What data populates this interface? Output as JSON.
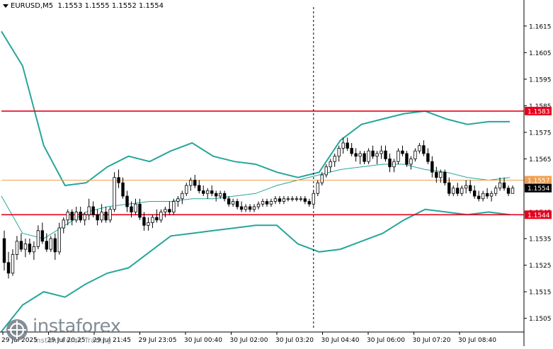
{
  "symbol_bar": {
    "symbol": "EURUSD,M5",
    "ohlc": "1.1553 1.1555 1.1552 1.1554"
  },
  "watermark": {
    "brand": "instaforex",
    "tagline": "Instant Forex Trading"
  },
  "colors": {
    "background": "#ffffff",
    "candles": "#000000",
    "bollinger": "#26a69a",
    "red_line": "#e8001c",
    "orange_line": "#f0a050",
    "price_box": "#000000"
  },
  "chart_data": {
    "type": "candlestick",
    "symbol": "EURUSD",
    "timeframe": "M5",
    "ylim": [
      1.15,
      1.162
    ],
    "y_ticks": [
      "1.1615",
      "1.1605",
      "1.1595",
      "1.1585",
      "1.1575",
      "1.1565",
      "1.1555",
      "1.1545",
      "1.1535",
      "1.1525",
      "1.1515",
      "1.1505"
    ],
    "x_ticks": [
      "29 Jul 2025",
      "29 Jul 20:25",
      "29 Jul 21:45",
      "29 Jul 23:05",
      "30 Jul 00:40",
      "30 Jul 02:00",
      "30 Jul 03:20",
      "30 Jul 04:40",
      "30 Jul 06:00",
      "30 Jul 07:20",
      "30 Jul 08:40"
    ],
    "horizontal_levels": [
      {
        "price": 1.1583,
        "label": "1.1583",
        "color": "#e8001c"
      },
      {
        "price": 1.1557,
        "label": "1.1557",
        "color": "#f0a050"
      },
      {
        "price": 1.1544,
        "label": "1.1544",
        "color": "#e8001c"
      }
    ],
    "current_price": {
      "price": 1.1554,
      "label": "1.1554"
    },
    "vertical_marker_index": 73,
    "candles": [
      [
        1.1535,
        1.1538,
        1.1523,
        1.1526
      ],
      [
        1.1526,
        1.153,
        1.152,
        1.1522
      ],
      [
        1.1522,
        1.1531,
        1.1521,
        1.1529
      ],
      [
        1.1529,
        1.1536,
        1.1527,
        1.1534
      ],
      [
        1.1534,
        1.1537,
        1.153,
        1.1531
      ],
      [
        1.1531,
        1.1535,
        1.1528,
        1.1533
      ],
      [
        1.1533,
        1.1535,
        1.1529,
        1.153
      ],
      [
        1.153,
        1.1534,
        1.1527,
        1.1532
      ],
      [
        1.1532,
        1.154,
        1.1531,
        1.1538
      ],
      [
        1.1538,
        1.1541,
        1.1533,
        1.1534
      ],
      [
        1.1534,
        1.1537,
        1.153,
        1.1531
      ],
      [
        1.1531,
        1.1536,
        1.153,
        1.1535
      ],
      [
        1.1535,
        1.1537,
        1.1527,
        1.153
      ],
      [
        1.153,
        1.1541,
        1.1529,
        1.1539
      ],
      [
        1.1539,
        1.1543,
        1.1537,
        1.1542
      ],
      [
        1.1542,
        1.1546,
        1.154,
        1.1545
      ],
      [
        1.1545,
        1.1546,
        1.154,
        1.1542
      ],
      [
        1.1542,
        1.1547,
        1.1541,
        1.1545
      ],
      [
        1.1545,
        1.1547,
        1.1541,
        1.1542
      ],
      [
        1.1542,
        1.1545,
        1.154,
        1.1544
      ],
      [
        1.1544,
        1.155,
        1.1542,
        1.1547
      ],
      [
        1.1547,
        1.1549,
        1.1543,
        1.1544
      ],
      [
        1.1544,
        1.1546,
        1.154,
        1.1542
      ],
      [
        1.1542,
        1.1548,
        1.1541,
        1.1545
      ],
      [
        1.1545,
        1.1547,
        1.1541,
        1.1542
      ],
      [
        1.1542,
        1.1547,
        1.1541,
        1.1546
      ],
      [
        1.1546,
        1.156,
        1.1545,
        1.1558
      ],
      [
        1.1558,
        1.1561,
        1.1554,
        1.1556
      ],
      [
        1.1556,
        1.1558,
        1.155,
        1.1551
      ],
      [
        1.1551,
        1.1553,
        1.1545,
        1.1547
      ],
      [
        1.1547,
        1.1549,
        1.1543,
        1.1545
      ],
      [
        1.1545,
        1.155,
        1.1544,
        1.1548
      ],
      [
        1.1548,
        1.155,
        1.1542,
        1.1543
      ],
      [
        1.1543,
        1.1545,
        1.1538,
        1.154
      ],
      [
        1.154,
        1.1543,
        1.1538,
        1.1541
      ],
      [
        1.1541,
        1.1544,
        1.1539,
        1.1543
      ],
      [
        1.1543,
        1.1546,
        1.1541,
        1.1542
      ],
      [
        1.1542,
        1.1546,
        1.1541,
        1.1545
      ],
      [
        1.1545,
        1.1547,
        1.1543,
        1.1546
      ],
      [
        1.1546,
        1.1549,
        1.1544,
        1.1545
      ],
      [
        1.1545,
        1.155,
        1.1544,
        1.1549
      ],
      [
        1.1549,
        1.1551,
        1.1547,
        1.155
      ],
      [
        1.155,
        1.1553,
        1.1548,
        1.1552
      ],
      [
        1.1552,
        1.1556,
        1.1551,
        1.1555
      ],
      [
        1.1555,
        1.1558,
        1.1553,
        1.1557
      ],
      [
        1.1557,
        1.1559,
        1.1554,
        1.1555
      ],
      [
        1.1555,
        1.1557,
        1.1552,
        1.1553
      ],
      [
        1.1553,
        1.1555,
        1.1551,
        1.1552
      ],
      [
        1.1552,
        1.1554,
        1.155,
        1.1553
      ],
      [
        1.1553,
        1.1555,
        1.1551,
        1.1552
      ],
      [
        1.1552,
        1.1553,
        1.1549,
        1.1551
      ],
      [
        1.1551,
        1.1553,
        1.155,
        1.1552
      ],
      [
        1.1552,
        1.1553,
        1.1549,
        1.155
      ],
      [
        1.155,
        1.1551,
        1.1547,
        1.1548
      ],
      [
        1.1548,
        1.155,
        1.1547,
        1.1549
      ],
      [
        1.1549,
        1.155,
        1.1546,
        1.1547
      ],
      [
        1.1547,
        1.1549,
        1.1545,
        1.1546
      ],
      [
        1.1546,
        1.1548,
        1.1545,
        1.1547
      ],
      [
        1.1547,
        1.1548,
        1.1545,
        1.1546
      ],
      [
        1.1546,
        1.1548,
        1.1545,
        1.1547
      ],
      [
        1.1547,
        1.1549,
        1.1546,
        1.1548
      ],
      [
        1.1548,
        1.155,
        1.1547,
        1.1549
      ],
      [
        1.1549,
        1.155,
        1.1547,
        1.1548
      ],
      [
        1.1548,
        1.155,
        1.1547,
        1.1549
      ],
      [
        1.1549,
        1.1551,
        1.1548,
        1.155
      ],
      [
        1.155,
        1.1551,
        1.1548,
        1.1549
      ],
      [
        1.1549,
        1.1551,
        1.1548,
        1.155
      ],
      [
        1.155,
        1.1551,
        1.1549,
        1.155
      ],
      [
        1.155,
        1.1551,
        1.1549,
        1.155
      ],
      [
        1.155,
        1.1551,
        1.1549,
        1.155
      ],
      [
        1.155,
        1.1551,
        1.1549,
        1.155
      ],
      [
        1.155,
        1.1551,
        1.1548,
        1.1549
      ],
      [
        1.1549,
        1.155,
        1.1547,
        1.1548
      ],
      [
        1.1548,
        1.1553,
        1.1547,
        1.1552
      ],
      [
        1.1552,
        1.1557,
        1.1551,
        1.1556
      ],
      [
        1.1556,
        1.156,
        1.1555,
        1.1559
      ],
      [
        1.1559,
        1.1563,
        1.1558,
        1.1562
      ],
      [
        1.1562,
        1.1565,
        1.156,
        1.1564
      ],
      [
        1.1564,
        1.1567,
        1.1562,
        1.1566
      ],
      [
        1.1566,
        1.157,
        1.1564,
        1.1569
      ],
      [
        1.1569,
        1.1573,
        1.1567,
        1.1571
      ],
      [
        1.1571,
        1.1573,
        1.1568,
        1.1569
      ],
      [
        1.1569,
        1.1571,
        1.1566,
        1.1567
      ],
      [
        1.1567,
        1.1569,
        1.1564,
        1.1566
      ],
      [
        1.1566,
        1.1568,
        1.1563,
        1.1567
      ],
      [
        1.1567,
        1.1568,
        1.1563,
        1.1564
      ],
      [
        1.1564,
        1.1569,
        1.1563,
        1.1568
      ],
      [
        1.1568,
        1.157,
        1.1565,
        1.1566
      ],
      [
        1.1566,
        1.1568,
        1.1563,
        1.1567
      ],
      [
        1.1567,
        1.157,
        1.1565,
        1.1568
      ],
      [
        1.1568,
        1.157,
        1.1564,
        1.1565
      ],
      [
        1.1565,
        1.1567,
        1.156,
        1.1562
      ],
      [
        1.1562,
        1.1565,
        1.156,
        1.1564
      ],
      [
        1.1564,
        1.1569,
        1.1563,
        1.1568
      ],
      [
        1.1568,
        1.157,
        1.1566,
        1.1567
      ],
      [
        1.1567,
        1.1568,
        1.1562,
        1.1563
      ],
      [
        1.1563,
        1.1566,
        1.1561,
        1.1565
      ],
      [
        1.1565,
        1.1569,
        1.1564,
        1.1568
      ],
      [
        1.1568,
        1.1571,
        1.1567,
        1.157
      ],
      [
        1.157,
        1.1572,
        1.1566,
        1.1567
      ],
      [
        1.1567,
        1.1569,
        1.1563,
        1.1564
      ],
      [
        1.1564,
        1.1566,
        1.1558,
        1.156
      ],
      [
        1.156,
        1.1562,
        1.1556,
        1.1558
      ],
      [
        1.1558,
        1.1561,
        1.1556,
        1.156
      ],
      [
        1.156,
        1.1561,
        1.1555,
        1.1556
      ],
      [
        1.1556,
        1.1558,
        1.1551,
        1.1552
      ],
      [
        1.1552,
        1.1555,
        1.1551,
        1.1554
      ],
      [
        1.1554,
        1.1556,
        1.1551,
        1.1552
      ],
      [
        1.1552,
        1.1555,
        1.1551,
        1.1554
      ],
      [
        1.1554,
        1.1557,
        1.1552,
        1.1555
      ],
      [
        1.1555,
        1.1557,
        1.1552,
        1.1553
      ],
      [
        1.1553,
        1.1555,
        1.155,
        1.1551
      ],
      [
        1.1551,
        1.1553,
        1.1549,
        1.155
      ],
      [
        1.155,
        1.1553,
        1.1549,
        1.1552
      ],
      [
        1.1552,
        1.1554,
        1.155,
        1.1551
      ],
      [
        1.1551,
        1.1553,
        1.1549,
        1.1552
      ],
      [
        1.1552,
        1.1555,
        1.1551,
        1.1554
      ],
      [
        1.1554,
        1.1558,
        1.1553,
        1.1556
      ],
      [
        1.1556,
        1.1558,
        1.1553,
        1.1554
      ],
      [
        1.1554,
        1.1555,
        1.1551,
        1.1552
      ],
      [
        1.1552,
        1.1555,
        1.1552,
        1.1554
      ]
    ],
    "bollinger": {
      "upper": [
        1.1613,
        1.16,
        1.157,
        1.1555,
        1.1556,
        1.1562,
        1.1566,
        1.1564,
        1.1568,
        1.1571,
        1.1566,
        1.1564,
        1.1563,
        1.156,
        1.1558,
        1.156,
        1.1572,
        1.1578,
        1.158,
        1.1582,
        1.1583,
        1.158,
        1.1578,
        1.1579,
        1.1579
      ],
      "middle": [
        1.1551,
        1.1537,
        1.1535,
        1.154,
        1.1545,
        1.1547,
        1.1548,
        1.1549,
        1.1549,
        1.155,
        1.155,
        1.1551,
        1.1552,
        1.1555,
        1.1557,
        1.1559,
        1.1561,
        1.1562,
        1.1563,
        1.1563,
        1.1561,
        1.156,
        1.1558,
        1.1557,
        1.1558
      ],
      "lower": [
        1.15,
        1.151,
        1.1515,
        1.1513,
        1.1518,
        1.1522,
        1.1524,
        1.153,
        1.1536,
        1.1537,
        1.1538,
        1.1539,
        1.154,
        1.154,
        1.1533,
        1.153,
        1.1531,
        1.1534,
        1.1537,
        1.1542,
        1.1546,
        1.1545,
        1.1544,
        1.1545,
        1.1544
      ]
    }
  }
}
